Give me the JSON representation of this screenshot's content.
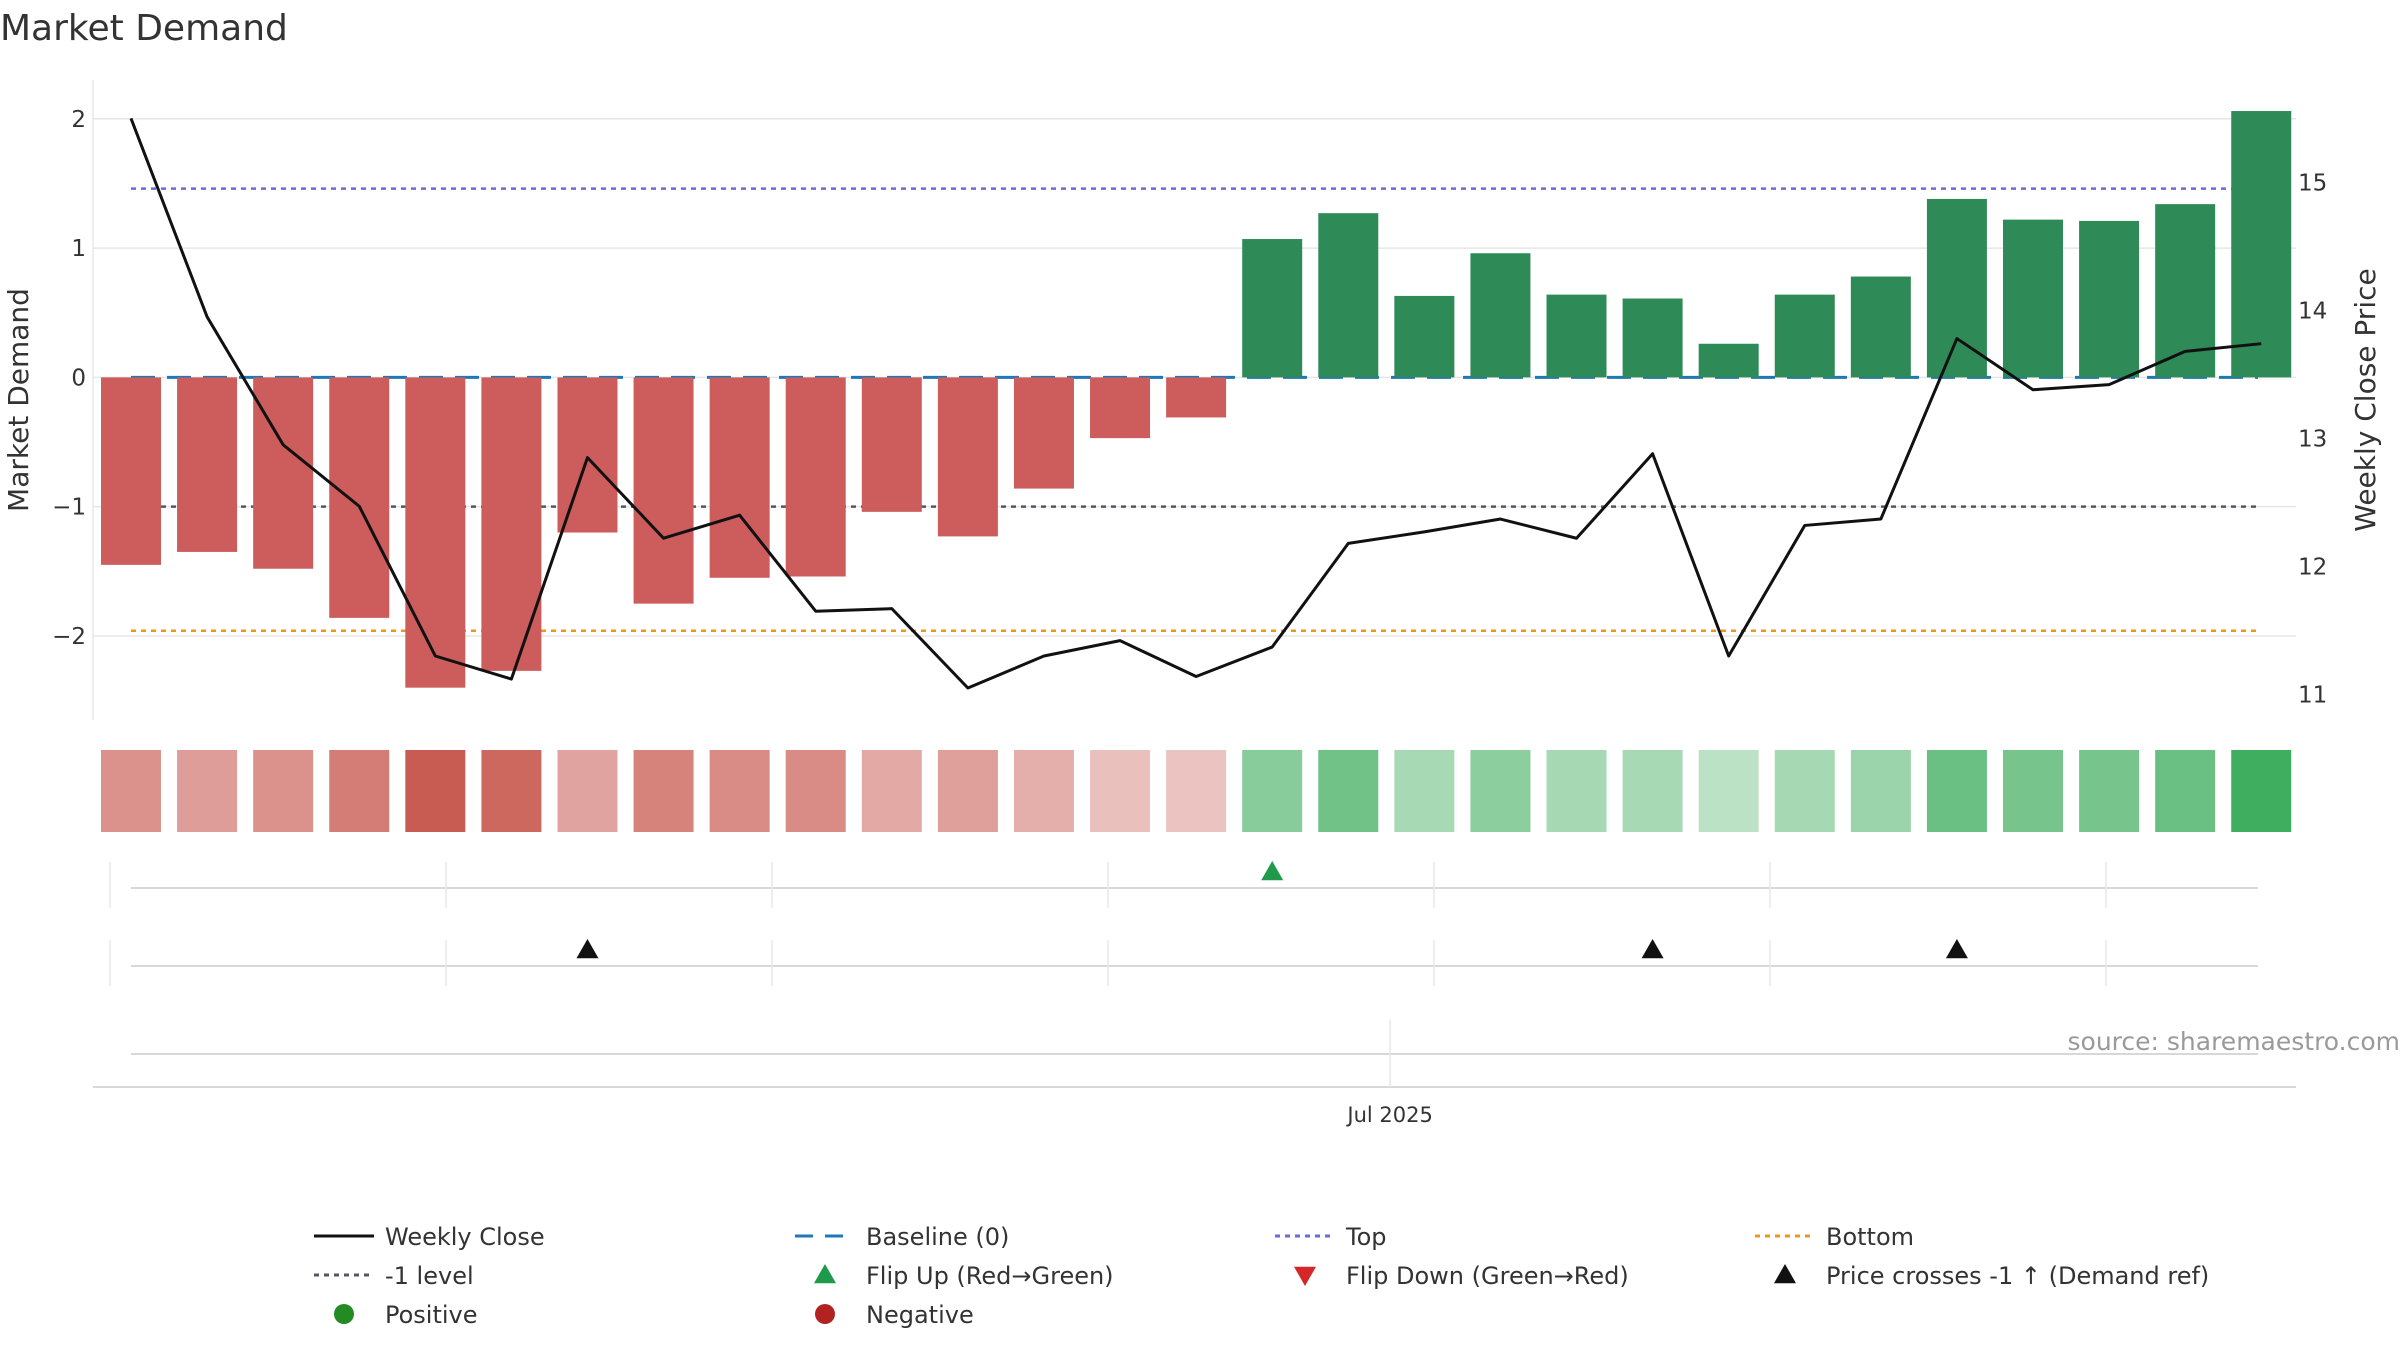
{
  "title": "Market Demand",
  "source": "source: sharemaestro.com",
  "colors": {
    "positive_bar": "#2e8b57",
    "negative_bar": "#cd5c5c",
    "price_line": "#111111",
    "baseline": "#1f77b4",
    "top": "#6a6ad8",
    "bottom": "#f0961e",
    "minus_one": "#555566",
    "flip_up": "#1e9a4a",
    "flip_down": "#d62728",
    "positive_dot": "#228b22",
    "negative_dot": "#b22222",
    "grid": "#e6e6e6"
  },
  "chart_data": {
    "type": "bar",
    "title": "Market Demand",
    "y_left_label": "Market Demand",
    "y_right_label": "Weekly Close Price",
    "y_left_range": [
      -2.65,
      2.3
    ],
    "y_right_range": [
      10.8,
      15.8
    ],
    "y_left_ticks": [
      {
        "v": 2,
        "t": "2"
      },
      {
        "v": 1,
        "t": "1"
      },
      {
        "v": 0,
        "t": "0"
      },
      {
        "v": -1,
        "t": "−1"
      },
      {
        "v": -2,
        "t": "−2"
      }
    ],
    "y_right_ticks": [
      {
        "v": 15,
        "t": "15"
      },
      {
        "v": 14,
        "t": "14"
      },
      {
        "v": 13,
        "t": "13"
      },
      {
        "v": 12,
        "t": "12"
      },
      {
        "v": 11,
        "t": "11"
      }
    ],
    "x_tick_labels": [
      {
        "index": 17,
        "label": "Jul 2025"
      }
    ],
    "demand": [
      -1.45,
      -1.35,
      -1.48,
      -1.86,
      -2.4,
      -2.27,
      -1.2,
      -1.75,
      -1.55,
      -1.54,
      -1.04,
      -1.23,
      -0.86,
      -0.47,
      -0.31,
      1.07,
      1.27,
      0.63,
      0.96,
      0.64,
      0.61,
      0.26,
      0.64,
      0.78,
      1.38,
      1.22,
      1.21,
      1.34,
      2.06
    ],
    "close": [
      15.5,
      13.95,
      12.95,
      12.47,
      11.3,
      11.12,
      12.85,
      12.22,
      12.4,
      11.65,
      11.67,
      11.05,
      11.3,
      11.42,
      11.14,
      11.37,
      12.18,
      12.27,
      12.37,
      12.22,
      12.88,
      11.3,
      12.32,
      12.37,
      13.78,
      13.38,
      13.42,
      13.68,
      13.74
    ],
    "top_level": 1.46,
    "bottom_level": -1.96,
    "minus_one_level": -1,
    "baseline_level": 0,
    "heat_intensity": [
      0.47,
      0.38,
      0.47,
      0.65,
      0.93,
      0.83,
      0.33,
      0.6,
      0.52,
      0.52,
      0.28,
      0.36,
      0.23,
      0.09,
      0.05,
      0.43,
      0.6,
      0.22,
      0.4,
      0.23,
      0.22,
      0.07,
      0.23,
      0.3,
      0.64,
      0.55,
      0.55,
      0.64,
      0.98
    ],
    "flip_up_indices": [
      15
    ],
    "flip_down_indices": [],
    "price_cross_indices": [
      6,
      20,
      24
    ]
  },
  "legend": [
    {
      "label": "Weekly Close",
      "kind": "solid",
      "color": "#111111"
    },
    {
      "label": "Baseline (0)",
      "kind": "dashed",
      "color": "#1f77b4"
    },
    {
      "label": "Top",
      "kind": "dotted",
      "color": "#6a6ad8"
    },
    {
      "label": "Bottom",
      "kind": "dotted",
      "color": "#f0961e"
    },
    {
      "label": "-1 level",
      "kind": "dotted",
      "color": "#555566"
    },
    {
      "label": "Flip Up (Red→Green)",
      "kind": "tri-up",
      "color": "#1e9a4a"
    },
    {
      "label": "Flip Down (Green→Red)",
      "kind": "tri-down",
      "color": "#d62728"
    },
    {
      "label": "Price crosses -1 ↑ (Demand ref)",
      "kind": "tri-up",
      "color": "#111111"
    },
    {
      "label": "Positive",
      "kind": "dot",
      "color": "#228b22"
    },
    {
      "label": "Negative",
      "kind": "dot",
      "color": "#b22222"
    }
  ]
}
